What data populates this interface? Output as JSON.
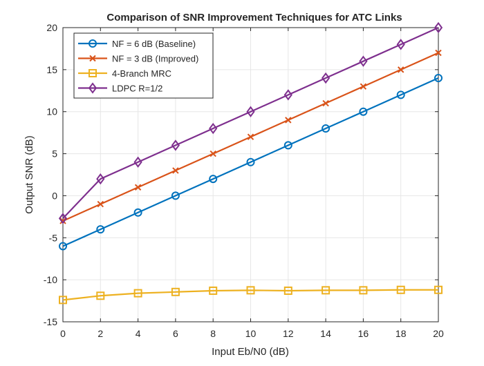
{
  "chart_data": {
    "type": "line",
    "title": "Comparison of SNR Improvement Techniques for ATC Links",
    "xlabel": "Input Eb/N0 (dB)",
    "ylabel": "Output SNR (dB)",
    "xlim": [
      0,
      20
    ],
    "ylim": [
      -15,
      20
    ],
    "xticks": [
      0,
      2,
      4,
      6,
      8,
      10,
      12,
      14,
      16,
      18,
      20
    ],
    "yticks": [
      -15,
      -10,
      -5,
      0,
      5,
      10,
      15,
      20
    ],
    "grid": true,
    "legend_position": "top-left",
    "x": [
      0,
      2,
      4,
      6,
      8,
      10,
      12,
      14,
      16,
      18,
      20
    ],
    "series": [
      {
        "name": "NF = 6 dB (Baseline)",
        "color": "#0072BD",
        "marker": "circle",
        "values": [
          -6,
          -4,
          -2,
          0,
          2,
          4,
          6,
          8,
          10,
          12,
          14
        ]
      },
      {
        "name": "NF = 3 dB (Improved)",
        "color": "#D95319",
        "marker": "x",
        "values": [
          -3,
          -1,
          1,
          3,
          5,
          7,
          9,
          11,
          13,
          15,
          17
        ]
      },
      {
        "name": "4-Branch MRC",
        "color": "#EDB120",
        "marker": "square",
        "values": [
          -12.4,
          -11.9,
          -11.6,
          -11.45,
          -11.3,
          -11.25,
          -11.3,
          -11.25,
          -11.25,
          -11.2,
          -11.2
        ]
      },
      {
        "name": "LDPC R=1/2",
        "color": "#7E2F8E",
        "marker": "diamond",
        "values": [
          -2.7,
          2,
          4,
          6,
          8,
          10,
          12,
          14,
          16,
          18,
          20
        ]
      }
    ]
  }
}
